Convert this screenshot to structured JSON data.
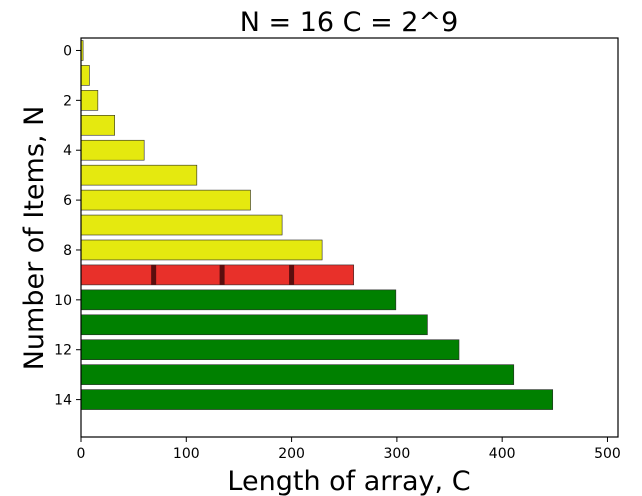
{
  "chart_data": {
    "type": "bar",
    "orientation": "horizontal",
    "title": "N = 16  C = 2^9",
    "xlabel": "Length of array, C",
    "ylabel": "Number of Items, N",
    "xlim": [
      0,
      510
    ],
    "ylim": [
      -0.5,
      15.5
    ],
    "y_inverted": true,
    "xticks": [
      0,
      100,
      200,
      300,
      400,
      500
    ],
    "yticks": [
      0,
      2,
      4,
      6,
      8,
      10,
      12,
      14
    ],
    "grid": false,
    "legend": "none",
    "items": [
      0,
      1,
      2,
      3,
      4,
      5,
      6,
      7,
      8,
      9,
      10,
      11,
      12,
      13,
      14
    ],
    "values": [
      2,
      8,
      16,
      32,
      60,
      110,
      161,
      191,
      229,
      259,
      299,
      329,
      359,
      411,
      448
    ],
    "bar_colors": [
      "#e5e90f",
      "#e5e90f",
      "#e5e90f",
      "#e5e90f",
      "#e5e90f",
      "#e5e90f",
      "#e5e90f",
      "#e5e90f",
      "#e5e90f",
      "#e8302a",
      "#008000",
      "#008000",
      "#008000",
      "#008000",
      "#008000"
    ],
    "highlight": {
      "item": 9,
      "markers": [
        69,
        134,
        200
      ],
      "marker_color": "#5a0e0e"
    }
  }
}
